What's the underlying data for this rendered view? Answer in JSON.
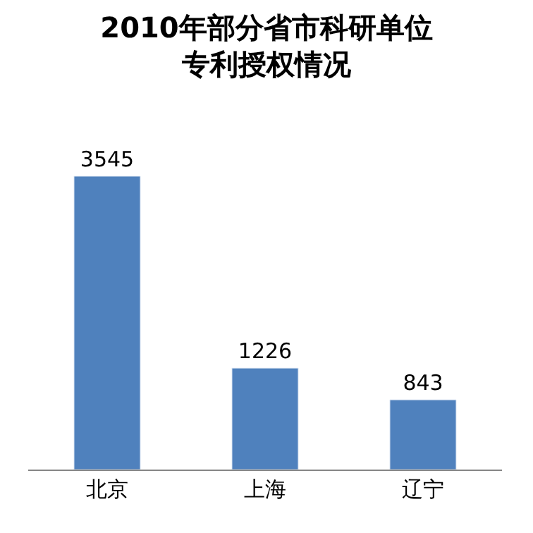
{
  "chart_data": {
    "type": "bar",
    "title": "2010年部分省市科研单位专利授权情况",
    "categories": [
      "北京",
      "上海",
      "辽宁"
    ],
    "values": [
      3545,
      1226,
      843
    ],
    "color": "#4f81bd",
    "data_labels": true,
    "legend": false
  }
}
